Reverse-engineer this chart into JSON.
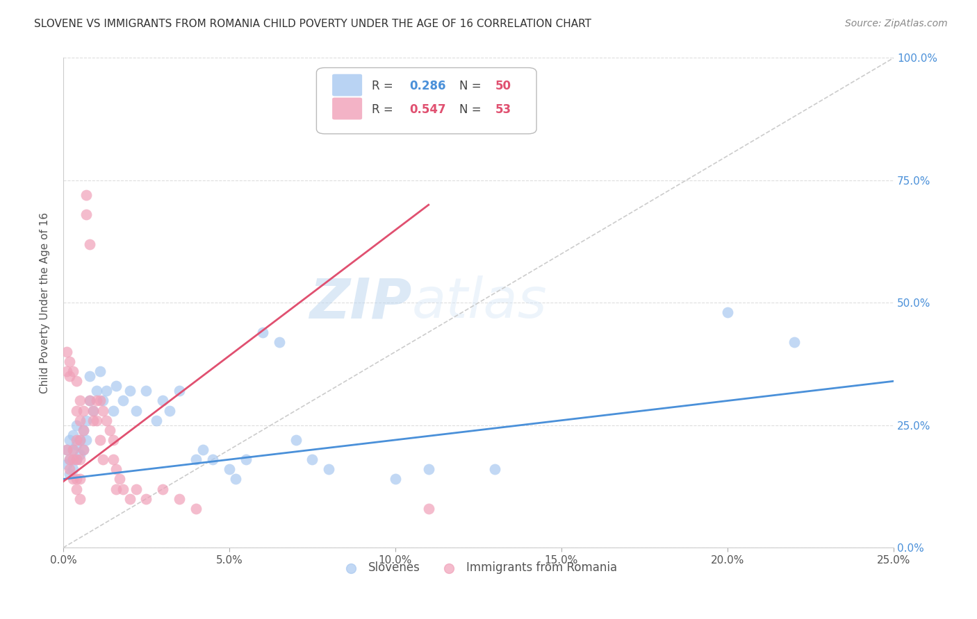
{
  "title": "SLOVENE VS IMMIGRANTS FROM ROMANIA CHILD POVERTY UNDER THE AGE OF 16 CORRELATION CHART",
  "source": "Source: ZipAtlas.com",
  "ylabel": "Child Poverty Under the Age of 16",
  "xlim": [
    0.0,
    0.25
  ],
  "ylim": [
    0.0,
    1.0
  ],
  "xticks": [
    0.0,
    0.05,
    0.1,
    0.15,
    0.2,
    0.25
  ],
  "yticks": [
    0.0,
    0.25,
    0.5,
    0.75,
    1.0
  ],
  "xtick_labels": [
    "0.0%",
    "5.0%",
    "10.0%",
    "15.0%",
    "20.0%",
    "25.0%"
  ],
  "ytick_labels_right": [
    "0.0%",
    "25.0%",
    "50.0%",
    "75.0%",
    "100.0%"
  ],
  "blue_color": "#a8c8f0",
  "pink_color": "#f0a0b8",
  "blue_line_color": "#4a90d9",
  "pink_line_color": "#e05070",
  "diagonal_color": "#cccccc",
  "watermark_zip": "ZIP",
  "watermark_atlas": "atlas",
  "background_color": "#ffffff",
  "grid_color": "#dddddd",
  "title_color": "#333333",
  "axis_label_color": "#555555",
  "right_tick_color": "#4a90d9",
  "blue_line_x0": 0.0,
  "blue_line_y0": 0.14,
  "blue_line_x1": 0.25,
  "blue_line_y1": 0.34,
  "pink_line_x0": 0.0,
  "pink_line_y0": 0.135,
  "pink_line_x1": 0.11,
  "pink_line_y1": 0.7,
  "slovene_points": [
    [
      0.001,
      0.17
    ],
    [
      0.001,
      0.2
    ],
    [
      0.002,
      0.15
    ],
    [
      0.002,
      0.18
    ],
    [
      0.002,
      0.22
    ],
    [
      0.003,
      0.16
    ],
    [
      0.003,
      0.2
    ],
    [
      0.003,
      0.23
    ],
    [
      0.004,
      0.18
    ],
    [
      0.004,
      0.21
    ],
    [
      0.004,
      0.25
    ],
    [
      0.005,
      0.19
    ],
    [
      0.005,
      0.22
    ],
    [
      0.006,
      0.2
    ],
    [
      0.006,
      0.24
    ],
    [
      0.007,
      0.22
    ],
    [
      0.007,
      0.26
    ],
    [
      0.008,
      0.3
    ],
    [
      0.008,
      0.35
    ],
    [
      0.009,
      0.28
    ],
    [
      0.01,
      0.32
    ],
    [
      0.011,
      0.36
    ],
    [
      0.012,
      0.3
    ],
    [
      0.013,
      0.32
    ],
    [
      0.015,
      0.28
    ],
    [
      0.016,
      0.33
    ],
    [
      0.018,
      0.3
    ],
    [
      0.02,
      0.32
    ],
    [
      0.022,
      0.28
    ],
    [
      0.025,
      0.32
    ],
    [
      0.028,
      0.26
    ],
    [
      0.03,
      0.3
    ],
    [
      0.032,
      0.28
    ],
    [
      0.035,
      0.32
    ],
    [
      0.04,
      0.18
    ],
    [
      0.042,
      0.2
    ],
    [
      0.045,
      0.18
    ],
    [
      0.05,
      0.16
    ],
    [
      0.052,
      0.14
    ],
    [
      0.055,
      0.18
    ],
    [
      0.06,
      0.44
    ],
    [
      0.065,
      0.42
    ],
    [
      0.07,
      0.22
    ],
    [
      0.075,
      0.18
    ],
    [
      0.08,
      0.16
    ],
    [
      0.1,
      0.14
    ],
    [
      0.11,
      0.16
    ],
    [
      0.13,
      0.16
    ],
    [
      0.2,
      0.48
    ],
    [
      0.22,
      0.42
    ]
  ],
  "romania_points": [
    [
      0.001,
      0.36
    ],
    [
      0.001,
      0.4
    ],
    [
      0.001,
      0.2
    ],
    [
      0.002,
      0.35
    ],
    [
      0.002,
      0.38
    ],
    [
      0.002,
      0.18
    ],
    [
      0.002,
      0.16
    ],
    [
      0.003,
      0.36
    ],
    [
      0.003,
      0.2
    ],
    [
      0.003,
      0.18
    ],
    [
      0.003,
      0.14
    ],
    [
      0.004,
      0.34
    ],
    [
      0.004,
      0.28
    ],
    [
      0.004,
      0.22
    ],
    [
      0.004,
      0.18
    ],
    [
      0.004,
      0.14
    ],
    [
      0.004,
      0.12
    ],
    [
      0.005,
      0.3
    ],
    [
      0.005,
      0.26
    ],
    [
      0.005,
      0.22
    ],
    [
      0.005,
      0.18
    ],
    [
      0.005,
      0.14
    ],
    [
      0.005,
      0.1
    ],
    [
      0.006,
      0.28
    ],
    [
      0.006,
      0.24
    ],
    [
      0.006,
      0.2
    ],
    [
      0.007,
      0.68
    ],
    [
      0.007,
      0.72
    ],
    [
      0.008,
      0.62
    ],
    [
      0.008,
      0.3
    ],
    [
      0.009,
      0.28
    ],
    [
      0.009,
      0.26
    ],
    [
      0.01,
      0.3
    ],
    [
      0.01,
      0.26
    ],
    [
      0.011,
      0.3
    ],
    [
      0.011,
      0.22
    ],
    [
      0.012,
      0.28
    ],
    [
      0.012,
      0.18
    ],
    [
      0.013,
      0.26
    ],
    [
      0.014,
      0.24
    ],
    [
      0.015,
      0.22
    ],
    [
      0.015,
      0.18
    ],
    [
      0.016,
      0.16
    ],
    [
      0.016,
      0.12
    ],
    [
      0.017,
      0.14
    ],
    [
      0.018,
      0.12
    ],
    [
      0.02,
      0.1
    ],
    [
      0.022,
      0.12
    ],
    [
      0.025,
      0.1
    ],
    [
      0.03,
      0.12
    ],
    [
      0.035,
      0.1
    ],
    [
      0.04,
      0.08
    ],
    [
      0.11,
      0.08
    ]
  ]
}
